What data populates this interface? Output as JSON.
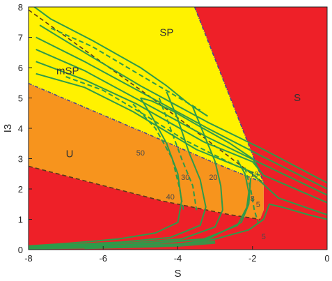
{
  "chart_data": {
    "type": "area",
    "xlabel": "S",
    "ylabel": "I3",
    "xlim": [
      -8,
      0
    ],
    "ylim": [
      0,
      8
    ],
    "x_ticks": [
      "-8",
      "-6",
      "-4",
      "-2",
      "0"
    ],
    "y_ticks": [
      "0",
      "1",
      "2",
      "3",
      "4",
      "5",
      "6",
      "7",
      "8"
    ],
    "grid": false,
    "colors": {
      "S": "#ee2028",
      "SP": "#fff200",
      "mSP": "#fff200",
      "U": "#f7941d",
      "boundary": "#4a4a8c",
      "contour": "#2e9b4a",
      "dashed_line": "#5a3a1a"
    },
    "regions": [
      {
        "label": "S",
        "label_at": [
          -0.8,
          4.9
        ],
        "polygon": [
          [
            -8,
            0
          ],
          [
            -8,
            2.75
          ],
          [
            -4.4,
            1.6
          ],
          [
            -2.6,
            1.15
          ],
          [
            -1.8,
            1.0
          ],
          [
            -1.7,
            1.3
          ],
          [
            -1.7,
            2.2
          ],
          [
            -3.55,
            8
          ],
          [
            0,
            8
          ],
          [
            0,
            0
          ]
        ]
      },
      {
        "label": "U",
        "label_at": [
          -6.9,
          3.05
        ],
        "polygon": [
          [
            -8,
            2.75
          ],
          [
            -8,
            5.48
          ],
          [
            -4.6,
            3.7
          ],
          [
            -3.0,
            2.85
          ],
          [
            -1.7,
            2.2
          ],
          [
            -1.7,
            1.3
          ],
          [
            -1.8,
            1.0
          ],
          [
            -2.6,
            1.15
          ],
          [
            -4.4,
            1.6
          ]
        ]
      },
      {
        "label": "SP",
        "label_at": [
          -4.3,
          7.05
        ],
        "polygon": [
          [
            -8,
            5.48
          ],
          [
            -8,
            8
          ],
          [
            -3.55,
            8
          ],
          [
            -1.7,
            2.2
          ],
          [
            -3.0,
            2.85
          ],
          [
            -4.6,
            3.7
          ]
        ]
      },
      {
        "label": "mSP",
        "label_at": [
          -6.95,
          5.78
        ],
        "polygon": []
      }
    ],
    "dashed_lines": [
      [
        [
          -8,
          7.9
        ],
        [
          -4.7,
          5.0
        ],
        [
          -1.7,
          2.2
        ]
      ],
      [
        [
          -8,
          2.75
        ],
        [
          -4.4,
          1.6
        ],
        [
          -2.6,
          1.15
        ],
        [
          -1.8,
          1.0
        ]
      ]
    ],
    "contour_labels": [
      {
        "text": "50",
        "at": [
          -5.0,
          3.1
        ]
      },
      {
        "text": "40",
        "at": [
          -4.2,
          1.65
        ]
      },
      {
        "text": "30",
        "at": [
          -3.8,
          2.3
        ]
      },
      {
        "text": "20",
        "at": [
          -3.05,
          2.3
        ]
      },
      {
        "text": "10",
        "at": [
          -1.95,
          2.4
        ]
      },
      {
        "text": "8",
        "at": [
          -2.0,
          1.6
        ]
      },
      {
        "text": "5",
        "at": [
          -1.85,
          1.4
        ]
      },
      {
        "text": "5",
        "at": [
          -1.7,
          0.35
        ]
      }
    ],
    "contours": [
      [
        [
          -7.7,
          7.4
        ],
        [
          -6.5,
          6.5
        ],
        [
          -5.0,
          5.4
        ],
        [
          -3.2,
          4.2
        ],
        [
          -1.7,
          3.3
        ],
        [
          0,
          2.2
        ]
      ],
      [
        [
          -7.8,
          7.0
        ],
        [
          -6.5,
          6.2
        ],
        [
          -5.0,
          5.2
        ],
        [
          -3.2,
          4.0
        ],
        [
          -1.7,
          3.05
        ],
        [
          0,
          2.0
        ]
      ],
      [
        [
          -7.8,
          6.6
        ],
        [
          -6.5,
          5.9
        ],
        [
          -5.0,
          4.9
        ],
        [
          -3.2,
          3.7
        ],
        [
          -1.7,
          2.8
        ],
        [
          0,
          1.8
        ]
      ],
      [
        [
          -7.8,
          6.2
        ],
        [
          -6.5,
          5.6
        ],
        [
          -5.1,
          4.8
        ],
        [
          -3.3,
          3.55
        ],
        [
          -2.0,
          2.9
        ],
        [
          -1.7,
          2.45
        ],
        [
          0,
          1.55
        ]
      ],
      [
        [
          -7.8,
          5.8
        ],
        [
          -6.5,
          5.35
        ],
        [
          -5.2,
          4.55
        ],
        [
          -3.5,
          3.3
        ],
        [
          -2.1,
          2.6
        ],
        [
          -1.3,
          1.7
        ],
        [
          0,
          1.15
        ]
      ],
      [
        [
          -7.9,
          8.05
        ],
        [
          -7.4,
          7.6
        ],
        [
          -6.3,
          6.9
        ],
        [
          -5.0,
          6.0
        ],
        [
          -4.3,
          5.4
        ],
        [
          -3.7,
          4.8
        ],
        [
          -3.2,
          4.4
        ]
      ],
      [
        [
          -5.0,
          5.0
        ],
        [
          -4.7,
          4.9
        ],
        [
          -4.1,
          4.55
        ],
        [
          -3.4,
          4.05
        ],
        [
          -2.6,
          3.5
        ],
        [
          -2.0,
          3.0
        ],
        [
          -1.8,
          2.6
        ]
      ],
      [
        [
          -5.0,
          5.0
        ],
        [
          -4.7,
          4.4
        ],
        [
          -4.3,
          3.5
        ],
        [
          -4.0,
          2.5
        ],
        [
          -3.9,
          1.6
        ],
        [
          -4.0,
          0.9
        ],
        [
          -4.6,
          0.55
        ],
        [
          -5.6,
          0.35
        ],
        [
          -7.0,
          0.2
        ],
        [
          -8.0,
          0.12
        ]
      ],
      [
        [
          -4.3,
          5.2
        ],
        [
          -4.0,
          4.3
        ],
        [
          -3.7,
          3.2
        ],
        [
          -3.4,
          2.3
        ],
        [
          -3.25,
          1.4
        ],
        [
          -3.4,
          0.8
        ],
        [
          -4.2,
          0.4
        ],
        [
          -5.5,
          0.25
        ],
        [
          -8.0,
          0.1
        ]
      ],
      [
        [
          -3.6,
          4.7
        ],
        [
          -3.3,
          3.8
        ],
        [
          -3.0,
          2.9
        ],
        [
          -2.85,
          2.1
        ],
        [
          -2.8,
          1.3
        ],
        [
          -3.0,
          0.75
        ],
        [
          -3.9,
          0.35
        ],
        [
          -5.5,
          0.2
        ],
        [
          -8.0,
          0.08
        ]
      ],
      [
        [
          -2.4,
          2.95
        ],
        [
          -2.2,
          2.5
        ],
        [
          -2.1,
          1.9
        ],
        [
          -2.15,
          1.4
        ],
        [
          -2.4,
          0.8
        ],
        [
          -3.3,
          0.35
        ],
        [
          -5.5,
          0.15
        ],
        [
          -8.0,
          0.05
        ]
      ],
      [
        [
          -2.05,
          2.35
        ],
        [
          -2.1,
          1.5
        ],
        [
          -2.3,
          0.9
        ],
        [
          -3.2,
          0.35
        ],
        [
          -5.5,
          0.12
        ],
        [
          -8.0,
          0.03
        ]
      ],
      [
        [
          -6.5,
          0.04
        ],
        [
          -4.5,
          0.1
        ],
        [
          -3.0,
          0.35
        ],
        [
          -2.1,
          0.65
        ],
        [
          -1.7,
          1.0
        ],
        [
          -1.55,
          1.5
        ],
        [
          -1.2,
          1.4
        ],
        [
          -0.5,
          1.15
        ],
        [
          0,
          1.0
        ]
      ]
    ],
    "dashed_contours": [
      [
        [
          -7.4,
          7.3
        ],
        [
          -6.3,
          6.7
        ],
        [
          -5.0,
          5.75
        ],
        [
          -4.1,
          5.1
        ],
        [
          -3.4,
          4.6
        ]
      ],
      [
        [
          -7.0,
          5.7
        ],
        [
          -6.0,
          5.25
        ],
        [
          -4.9,
          4.45
        ],
        [
          -3.8,
          3.6
        ],
        [
          -2.5,
          2.8
        ],
        [
          -1.8,
          2.45
        ]
      ],
      [
        [
          -5.2,
          4.8
        ],
        [
          -4.6,
          4.0
        ],
        [
          -4.15,
          3.0
        ],
        [
          -3.95,
          2.0
        ],
        [
          -3.85,
          1.3
        ]
      ],
      [
        [
          -4.5,
          5.0
        ],
        [
          -4.2,
          4.0
        ],
        [
          -3.9,
          3.0
        ],
        [
          -3.6,
          2.1
        ],
        [
          -3.5,
          1.3
        ]
      ],
      [
        [
          -2.2,
          2.7
        ],
        [
          -2.05,
          2.0
        ],
        [
          -1.95,
          1.3
        ],
        [
          -1.85,
          0.9
        ]
      ]
    ]
  }
}
